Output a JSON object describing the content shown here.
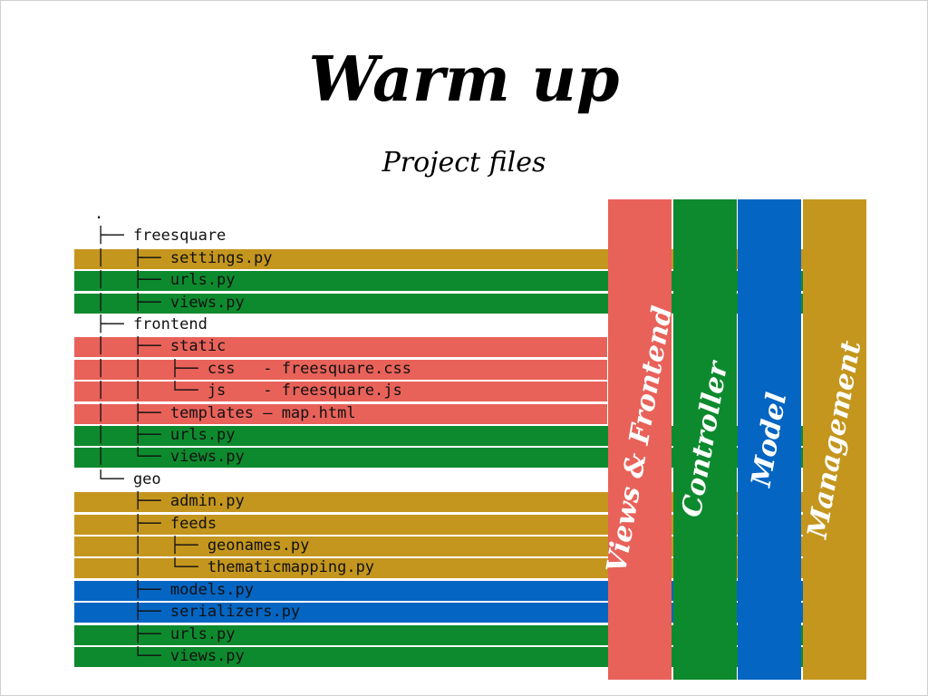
{
  "slide": {
    "title": "Warm up",
    "subtitle": "Project files"
  },
  "colors": {
    "views_frontend": "#e8625a",
    "controller": "#0e8a2e",
    "model": "#0565c2",
    "management": "#c4961e"
  },
  "tree": [
    {
      "text": ".",
      "category": null
    },
    {
      "text": "├── freesquare",
      "category": null
    },
    {
      "text": "│   ├── settings.py",
      "category": "management"
    },
    {
      "text": "│   ├── urls.py",
      "category": "controller"
    },
    {
      "text": "│   ├── views.py",
      "category": "controller"
    },
    {
      "text": "├── frontend",
      "category": null
    },
    {
      "text": "│   ├── static",
      "category": "views_frontend"
    },
    {
      "text": "│   │   ├── css   - freesquare.css",
      "category": "views_frontend"
    },
    {
      "text": "│   │   └── js    - freesquare.js",
      "category": "views_frontend"
    },
    {
      "text": "│   ├── templates – map.html",
      "category": "views_frontend"
    },
    {
      "text": "│   ├── urls.py",
      "category": "controller"
    },
    {
      "text": "│   └── views.py",
      "category": "controller"
    },
    {
      "text": "└── geo",
      "category": null
    },
    {
      "text": "    ├── admin.py",
      "category": "management"
    },
    {
      "text": "    ├── feeds",
      "category": "management"
    },
    {
      "text": "    │   ├── geonames.py",
      "category": "management"
    },
    {
      "text": "    │   └── thematicmapping.py",
      "category": "management"
    },
    {
      "text": "    ├── models.py",
      "category": "model"
    },
    {
      "text": "    ├── serializers.py",
      "category": "model"
    },
    {
      "text": "    ├── urls.py",
      "category": "controller"
    },
    {
      "text": "    └── views.py",
      "category": "controller"
    }
  ],
  "columns": [
    {
      "id": "views_frontend",
      "label": "Views & Frontend"
    },
    {
      "id": "controller",
      "label": "Controller"
    },
    {
      "id": "model",
      "label": "Model"
    },
    {
      "id": "management",
      "label": "Management"
    }
  ]
}
